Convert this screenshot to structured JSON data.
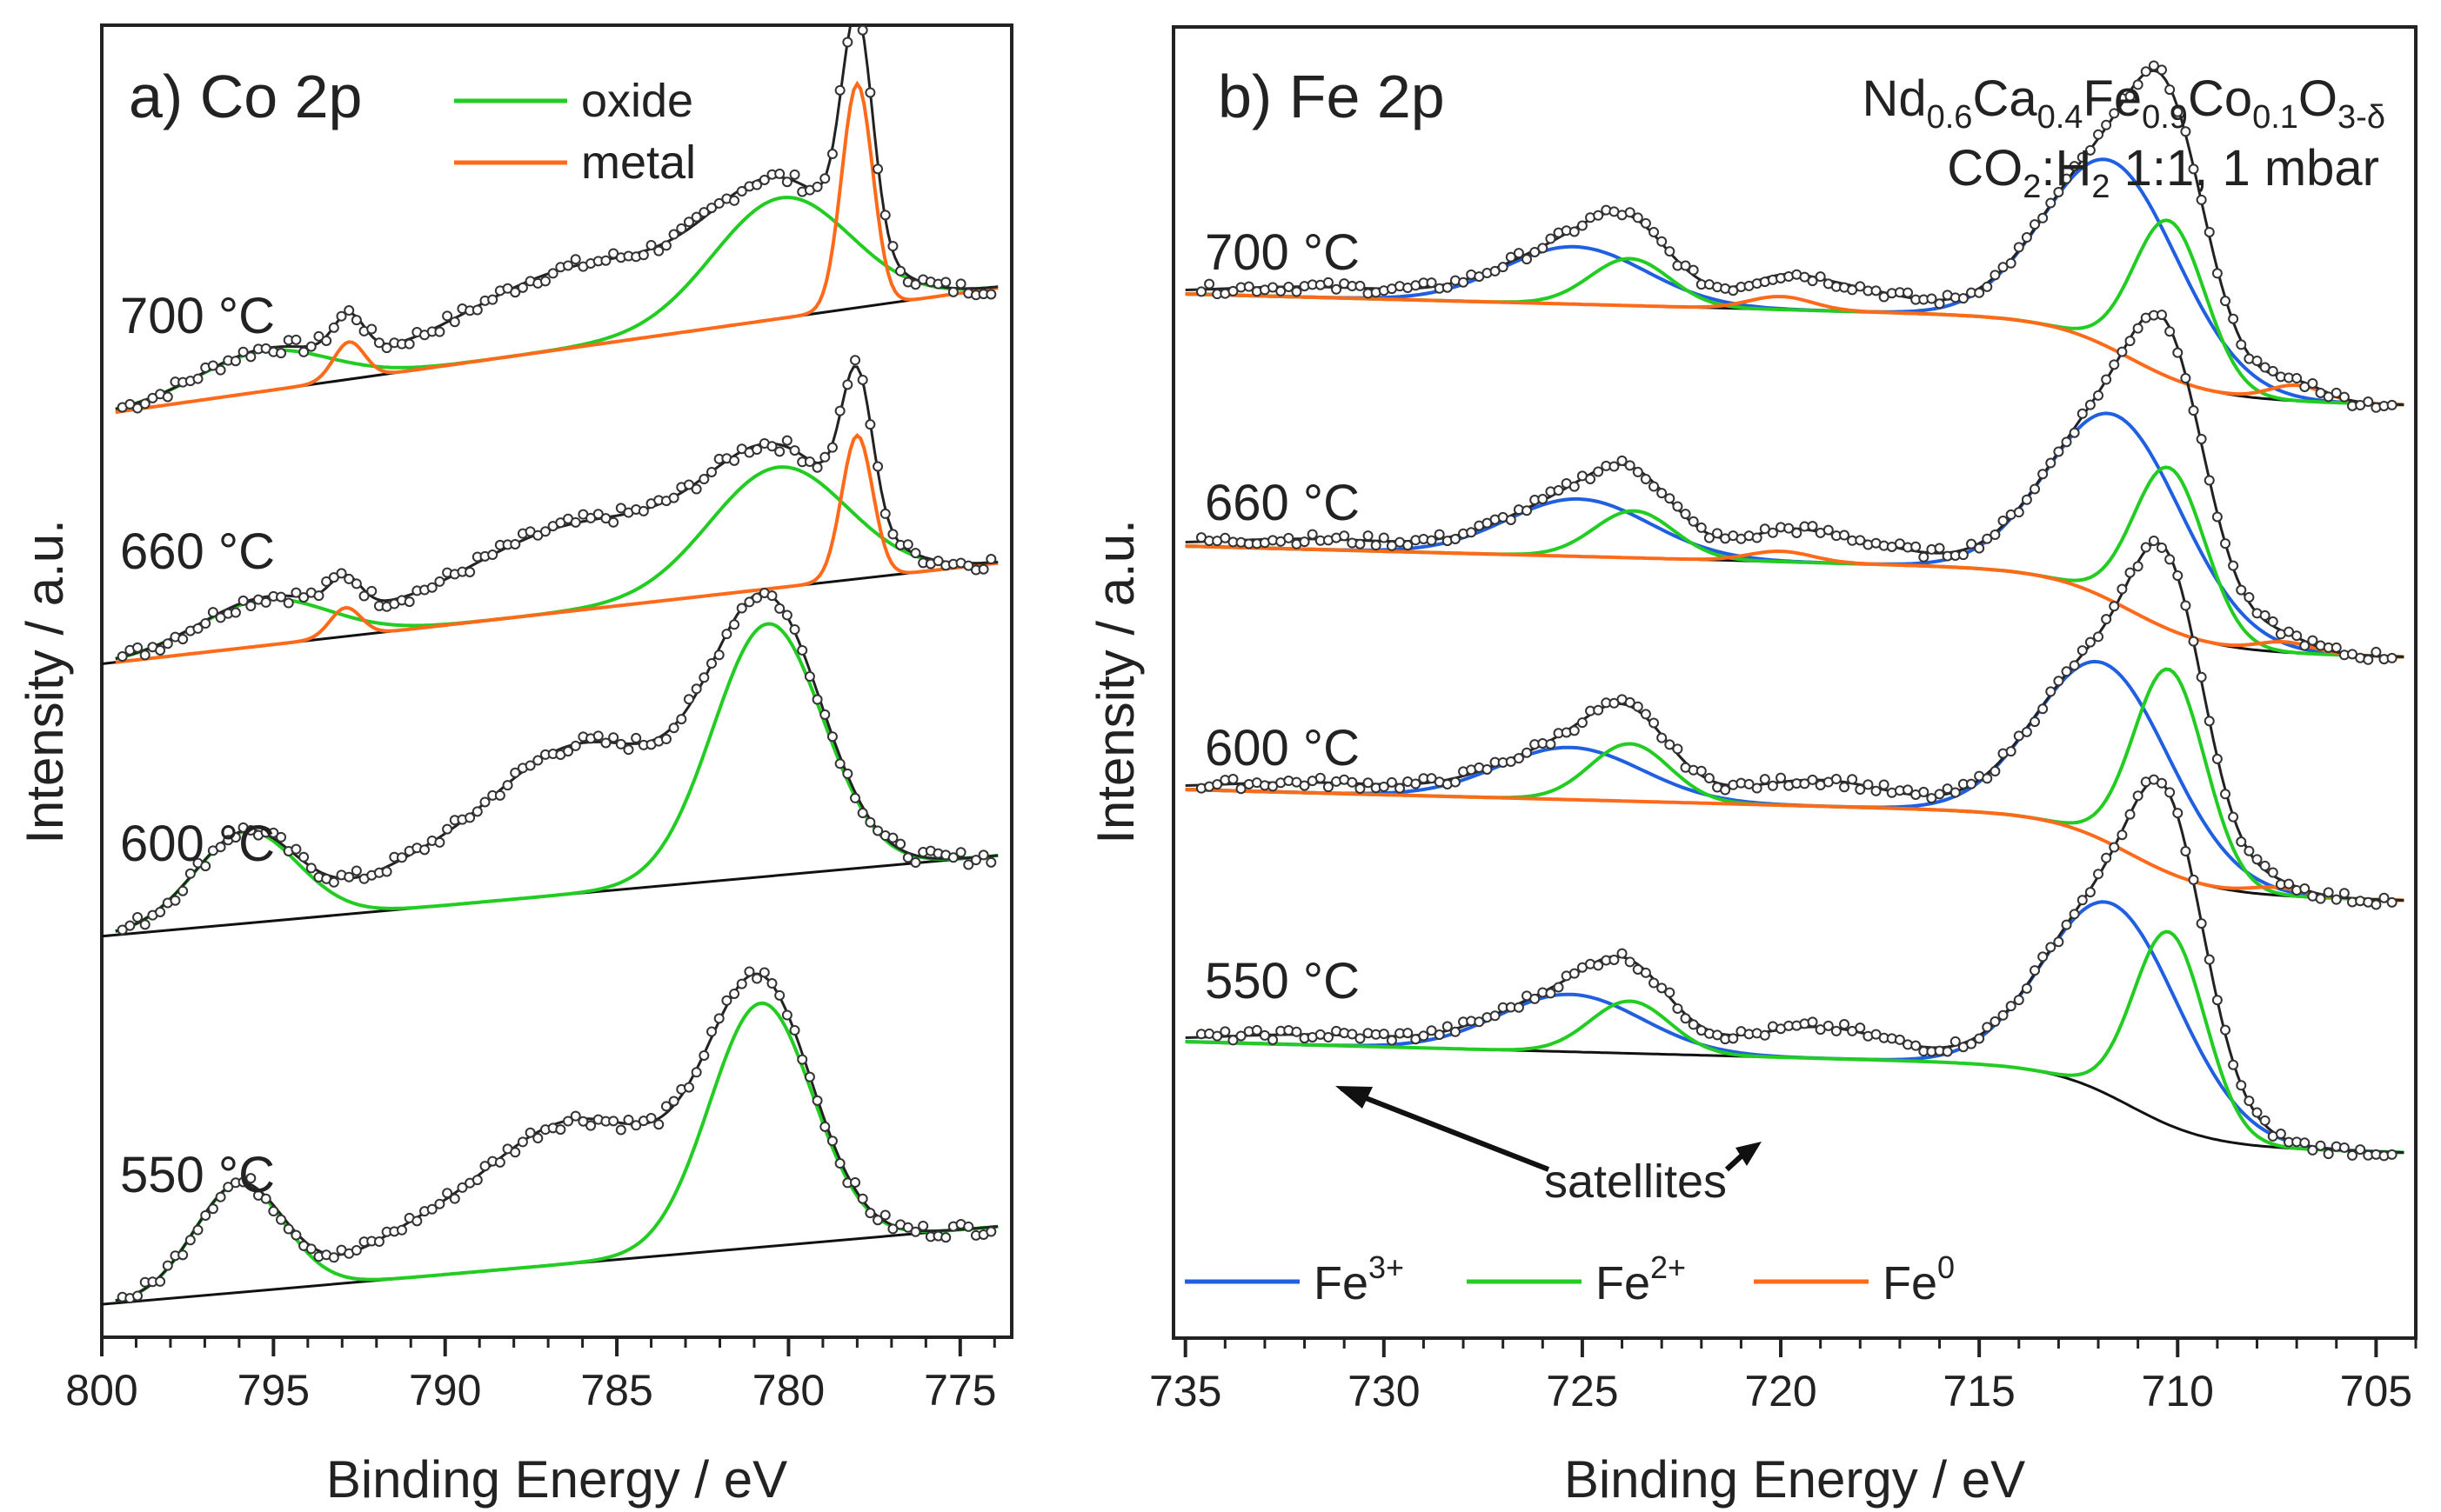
{
  "chart_data": [
    {
      "type": "line",
      "panel_label": "a) Co 2p",
      "xlabel": "Binding Energy / eV",
      "ylabel": "Intensity / a.u.",
      "xlim": [
        800,
        773.5
      ],
      "x_reversed": true,
      "xticks": [
        800,
        795,
        790,
        785,
        780,
        775
      ],
      "legend": [
        {
          "label": "oxide",
          "color": "#22cc22"
        },
        {
          "label": "metal",
          "color": "#ff6a1a"
        }
      ],
      "spectra": [
        {
          "temp": "700 °C",
          "offset": 3,
          "background": [
            [
              799.5,
              0.05
            ],
            [
              774,
              0.48
            ]
          ],
          "components": [
            {
              "name": "oxide",
              "color": "#22cc22",
              "peaks": [
                [
                  795.3,
                  0.14,
                  1.9
                ],
                [
                  780.2,
                  0.42,
                  2.0
                ]
              ]
            },
            {
              "name": "metal",
              "color": "#ff6a1a",
              "peaks": [
                [
                  792.8,
                  0.13,
                  0.45
                ],
                [
                  778.0,
                  0.78,
                  0.45
                ]
              ]
            }
          ],
          "envelope_extra": [
            [
              786,
              0.28,
              3.5
            ]
          ]
        },
        {
          "temp": "660 °C",
          "offset": 2,
          "background": [
            [
              800,
              0.05
            ],
            [
              774,
              0.4
            ]
          ],
          "components": [
            {
              "name": "oxide",
              "color": "#22cc22",
              "peaks": [
                [
                  795.3,
                  0.16,
                  1.9
                ],
                [
                  780.3,
                  0.42,
                  2.0
                ]
              ]
            },
            {
              "name": "metal",
              "color": "#ff6a1a",
              "peaks": [
                [
                  792.9,
                  0.1,
                  0.45
                ],
                [
                  778.0,
                  0.5,
                  0.45
                ]
              ]
            }
          ],
          "envelope_extra": [
            [
              786,
              0.3,
              3.5
            ]
          ]
        },
        {
          "temp": "600 °C",
          "offset": 1,
          "background": [
            [
              800,
              0.04
            ],
            [
              774,
              0.32
            ]
          ],
          "components": [
            {
              "name": "oxide",
              "color": "#22cc22",
              "peaks": [
                [
                  795.8,
                  0.32,
                  1.5
                ],
                [
                  780.6,
                  0.88,
                  1.6
                ]
              ]
            }
          ],
          "envelope_extra": [
            [
              786,
              0.52,
              3.0
            ],
            [
              791.5,
              0.06,
              1.5
            ]
          ]
        },
        {
          "temp": "550 °C",
          "offset": 0,
          "background": [
            [
              800,
              0.03
            ],
            [
              774,
              0.3
            ]
          ],
          "components": [
            {
              "name": "oxide",
              "color": "#22cc22",
              "peaks": [
                [
                  796.0,
                  0.38,
                  1.3
                ],
                [
                  780.8,
                  0.85,
                  1.5
                ]
              ]
            }
          ],
          "envelope_extra": [
            [
              786.2,
              0.5,
              3.0
            ],
            [
              791.5,
              0.06,
              1.5
            ]
          ]
        }
      ]
    },
    {
      "type": "line",
      "panel_label": "b) Fe 2p",
      "xlabel": "Binding Energy / eV",
      "ylabel": "Intensity / a.u.",
      "xlim": [
        735.3,
        704.0
      ],
      "x_reversed": true,
      "xticks": [
        735,
        730,
        725,
        720,
        715,
        710,
        705
      ],
      "sample_formula": "Nd0.6Ca0.4Fe0.9Co0.1O3-δ",
      "formula_parts": {
        "p1": "Nd",
        "s1": "0.6",
        "p2": "Ca",
        "s2": "0.4",
        "p3": "Fe",
        "s3": "0.9",
        "p4": "Co",
        "s4": "0.1",
        "p5": "O",
        "s5": "3-δ"
      },
      "conditions": "CO2:H2 1:1, 1 mbar",
      "conditions_parts": {
        "p1": "CO",
        "s1": "2",
        "p2": ":H",
        "s2": "2",
        "p3": " 1:1, 1 mbar"
      },
      "annotation": "satellites",
      "legend": [
        {
          "label": "Fe3+",
          "base": "Fe",
          "sup": "3+",
          "color": "#1f5fe0"
        },
        {
          "label": "Fe2+",
          "base": "Fe",
          "sup": "2+",
          "color": "#22cc22"
        },
        {
          "label": "Fe0",
          "base": "Fe",
          "sup": "0",
          "color": "#ff6a1a"
        }
      ],
      "spectra": [
        {
          "temp": "700 °C",
          "offset": 3,
          "components": [
            {
              "name": "Fe3+",
              "color": "#1f5fe0",
              "peaks": [
                [
                  725.2,
                  0.22,
                  1.8
                ],
                [
                  711.6,
                  0.72,
                  1.7
                ]
              ]
            },
            {
              "name": "Fe2+",
              "color": "#22cc22",
              "peaks": [
                [
                  723.8,
                  0.18,
                  1.0
                ],
                [
                  710.2,
                  0.6,
                  0.9
                ]
              ]
            },
            {
              "name": "Fe0",
              "color": "#ff6a1a",
              "peaks": [
                [
                  720.0,
                  0.05,
                  0.8
                ],
                [
                  707.0,
                  0.06,
                  0.7
                ]
              ]
            }
          ],
          "satellites": [
            [
              718.8,
              0.1,
              1.8
            ],
            [
              731.5,
              0.04,
              2.5
            ]
          ]
        },
        {
          "temp": "660 °C",
          "offset": 2,
          "components": [
            {
              "name": "Fe3+",
              "color": "#1f5fe0",
              "peaks": [
                [
                  725.1,
                  0.22,
                  1.8
                ],
                [
                  711.5,
                  0.72,
                  1.7
                ]
              ]
            },
            {
              "name": "Fe2+",
              "color": "#22cc22",
              "peaks": [
                [
                  723.7,
                  0.18,
                  1.0
                ],
                [
                  710.2,
                  0.62,
                  0.9
                ]
              ]
            },
            {
              "name": "Fe0",
              "color": "#ff6a1a",
              "peaks": [
                [
                  720.0,
                  0.04,
                  0.8
                ],
                [
                  707.3,
                  0.04,
                  0.7
                ]
              ]
            }
          ],
          "satellites": [
            [
              718.8,
              0.1,
              1.8
            ],
            [
              731.5,
              0.04,
              2.5
            ]
          ]
        },
        {
          "temp": "600 °C",
          "offset": 1,
          "components": [
            {
              "name": "Fe3+",
              "color": "#1f5fe0",
              "peaks": [
                [
                  725.3,
                  0.2,
                  1.8
                ],
                [
                  711.8,
                  0.68,
                  1.7
                ]
              ]
            },
            {
              "name": "Fe2+",
              "color": "#22cc22",
              "peaks": [
                [
                  723.8,
                  0.22,
                  1.0
                ],
                [
                  710.2,
                  0.78,
                  0.9
                ]
              ]
            },
            {
              "name": "Fe0",
              "color": "#ff6a1a",
              "peaks": [
                [
                  707.5,
                  0.03,
                  0.7
                ]
              ]
            }
          ],
          "satellites": [
            [
              719.0,
              0.1,
              1.8
            ],
            [
              731.5,
              0.04,
              2.5
            ]
          ]
        },
        {
          "temp": "550 °C",
          "offset": 0,
          "components": [
            {
              "name": "Fe3+",
              "color": "#1f5fe0",
              "peaks": [
                [
                  725.3,
                  0.22,
                  1.8
                ],
                [
                  711.6,
                  0.74,
                  1.7
                ]
              ]
            },
            {
              "name": "Fe2+",
              "color": "#22cc22",
              "peaks": [
                [
                  723.8,
                  0.2,
                  1.0
                ],
                [
                  710.2,
                  0.74,
                  0.9
                ]
              ]
            }
          ],
          "satellites": [
            [
              719.0,
              0.12,
              1.8
            ],
            [
              731.5,
              0.04,
              2.5
            ]
          ]
        }
      ]
    }
  ]
}
